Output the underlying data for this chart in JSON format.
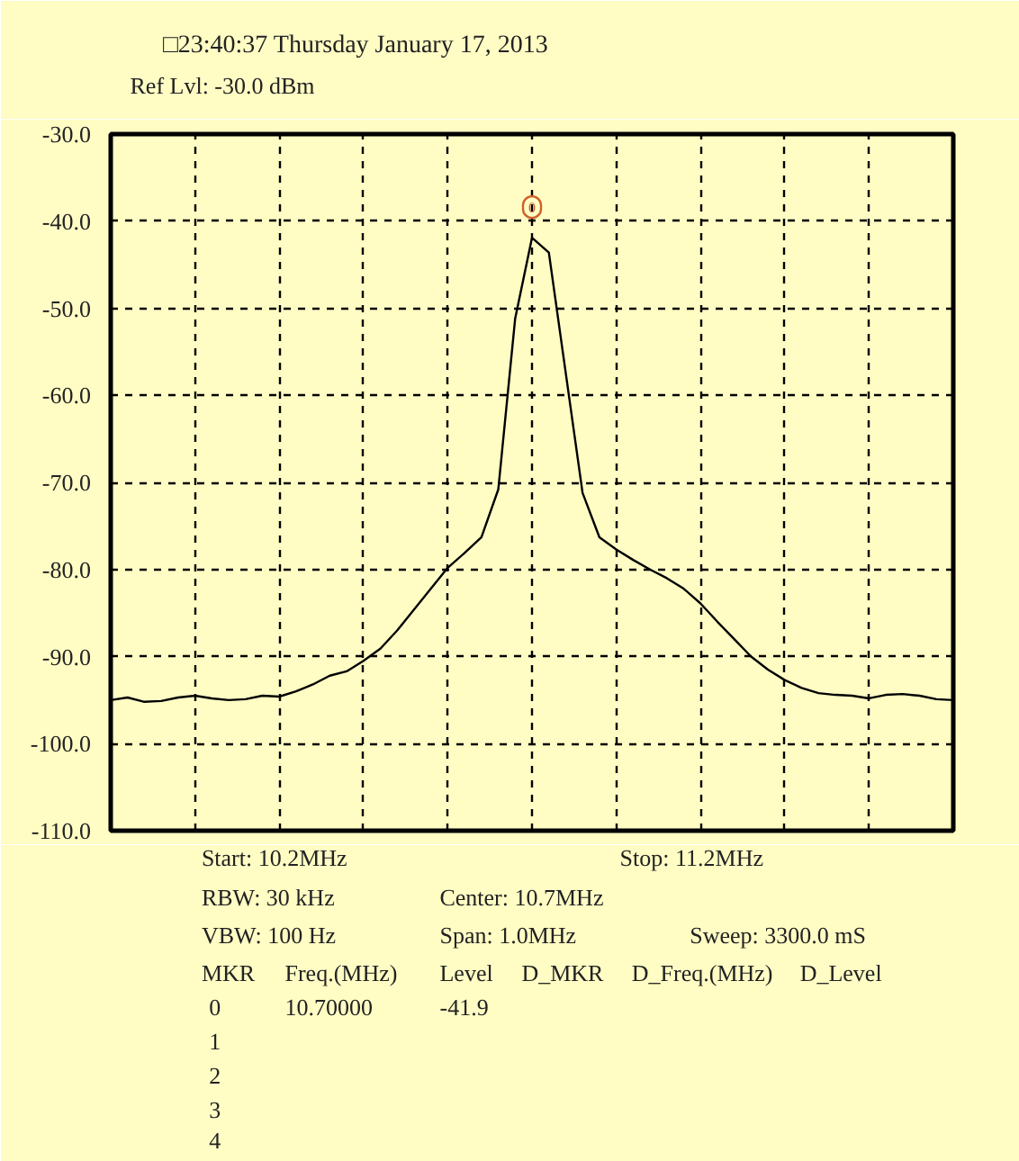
{
  "chart_data": {
    "type": "line",
    "title": "□23:40:37 Thursday January 17, 2013",
    "subtitle": "Ref Lvl: -30.0 dBm",
    "categories": [
      null,
      null,
      null,
      null,
      null,
      null,
      null,
      null,
      null,
      null,
      null,
      null,
      null,
      null,
      null,
      null,
      null,
      null,
      null,
      null,
      null,
      null,
      null,
      null,
      null,
      null,
      null,
      null,
      null,
      null,
      null,
      null,
      null,
      null,
      null,
      null,
      null,
      null,
      null,
      null,
      null,
      null,
      null,
      null,
      null,
      null,
      null,
      null,
      null,
      null,
      null
    ],
    "series": [
      {
        "color": "#000000",
        "values": [
          -95.0,
          -94.7,
          -95.2,
          -95.1,
          -94.7,
          -94.5,
          -94.8,
          -95.0,
          -94.9,
          -94.5,
          -94.6,
          -94.0,
          -93.2,
          -92.2,
          -91.7,
          -90.5,
          -89.1,
          -87.0,
          -84.6,
          -82.2,
          -79.8,
          -78.1,
          -76.3,
          -70.8,
          -51.2,
          -41.9,
          -43.6,
          -57.4,
          -71.2,
          -76.3,
          -77.7,
          -78.9,
          -80.0,
          -81.0,
          -82.2,
          -83.9,
          -86.0,
          -88.0,
          -90.0,
          -91.5,
          -92.7,
          -93.6,
          -94.2,
          -94.4,
          -94.5,
          -94.8,
          -94.4,
          -94.3,
          -94.5,
          -94.9,
          -95.0
        ]
      }
    ],
    "ylim": [
      -110,
      -30
    ],
    "yticks": [
      {
        "value": -110,
        "label": "-110.0"
      },
      {
        "value": -100,
        "label": "-100.0"
      },
      {
        "value": -90,
        "label": "-90.0"
      },
      {
        "value": -80,
        "label": "-80.0"
      },
      {
        "value": -70,
        "label": "-70.0"
      },
      {
        "value": -60,
        "label": "-60.0"
      },
      {
        "value": -50,
        "label": "-50.0"
      },
      {
        "value": -40,
        "label": "-40.0"
      },
      {
        "value": -30,
        "label": "-30.0"
      }
    ],
    "tick_labels": "y",
    "grid": true,
    "annotations": [
      {
        "text": "0",
        "y": -41.9
      },
      "Start: 10.2MHz",
      "Stop: 11.2MHz",
      "RBW: 30 kHz",
      "Center: 10.7MHz",
      "VBW: 100 Hz",
      "Span: 1.0MHz",
      "Sweep: 3300.0 mS",
      "MKR",
      "Freq.(MHz)",
      "Level",
      "D_MKR",
      "D_Freq.(MHz)",
      "D_Level",
      "0",
      "10.70000",
      "-41.9",
      "1",
      "2",
      "3",
      "4"
    ]
  }
}
